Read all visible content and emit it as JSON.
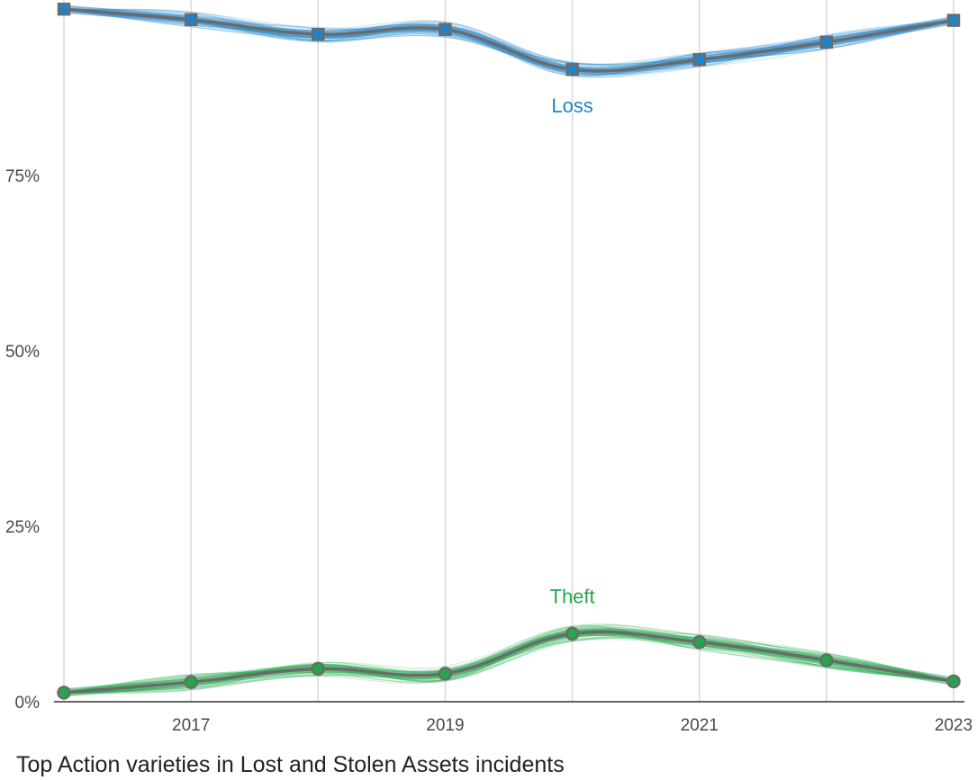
{
  "chart_data": {
    "type": "line",
    "title": "Top Action varieties in Lost and Stolen Assets incidents",
    "xlabel": "",
    "ylabel": "",
    "x": [
      2016,
      2017,
      2018,
      2019,
      2020,
      2021,
      2022,
      2023
    ],
    "x_tick_labels": [
      "2017",
      "2019",
      "2021",
      "2023"
    ],
    "x_tick_values": [
      2017,
      2019,
      2021,
      2023
    ],
    "y_tick_labels": [
      "0%",
      "25%",
      "50%",
      "75%"
    ],
    "y_tick_values": [
      0,
      25,
      50,
      75
    ],
    "ylim": [
      0,
      100
    ],
    "xlim": [
      2016,
      2023
    ],
    "grid": "vertical",
    "series": [
      {
        "name": "Loss",
        "marker": "square",
        "color": "#1f83c9",
        "values": [
          98.7,
          97.2,
          95.1,
          95.8,
          90.1,
          91.5,
          94.0,
          97.1
        ]
      },
      {
        "name": "Theft",
        "marker": "circle",
        "color": "#22a84a",
        "values": [
          1.3,
          2.8,
          4.7,
          4.0,
          9.7,
          8.5,
          5.9,
          2.9
        ]
      }
    ],
    "uncertainty_band": "simulated draws shown as faint lines around each series"
  },
  "colors": {
    "line": "#6b6b6b",
    "grid": "#d9d9d9",
    "axis": "#333333",
    "loss": "#1f83c9",
    "theft": "#22a84a"
  }
}
